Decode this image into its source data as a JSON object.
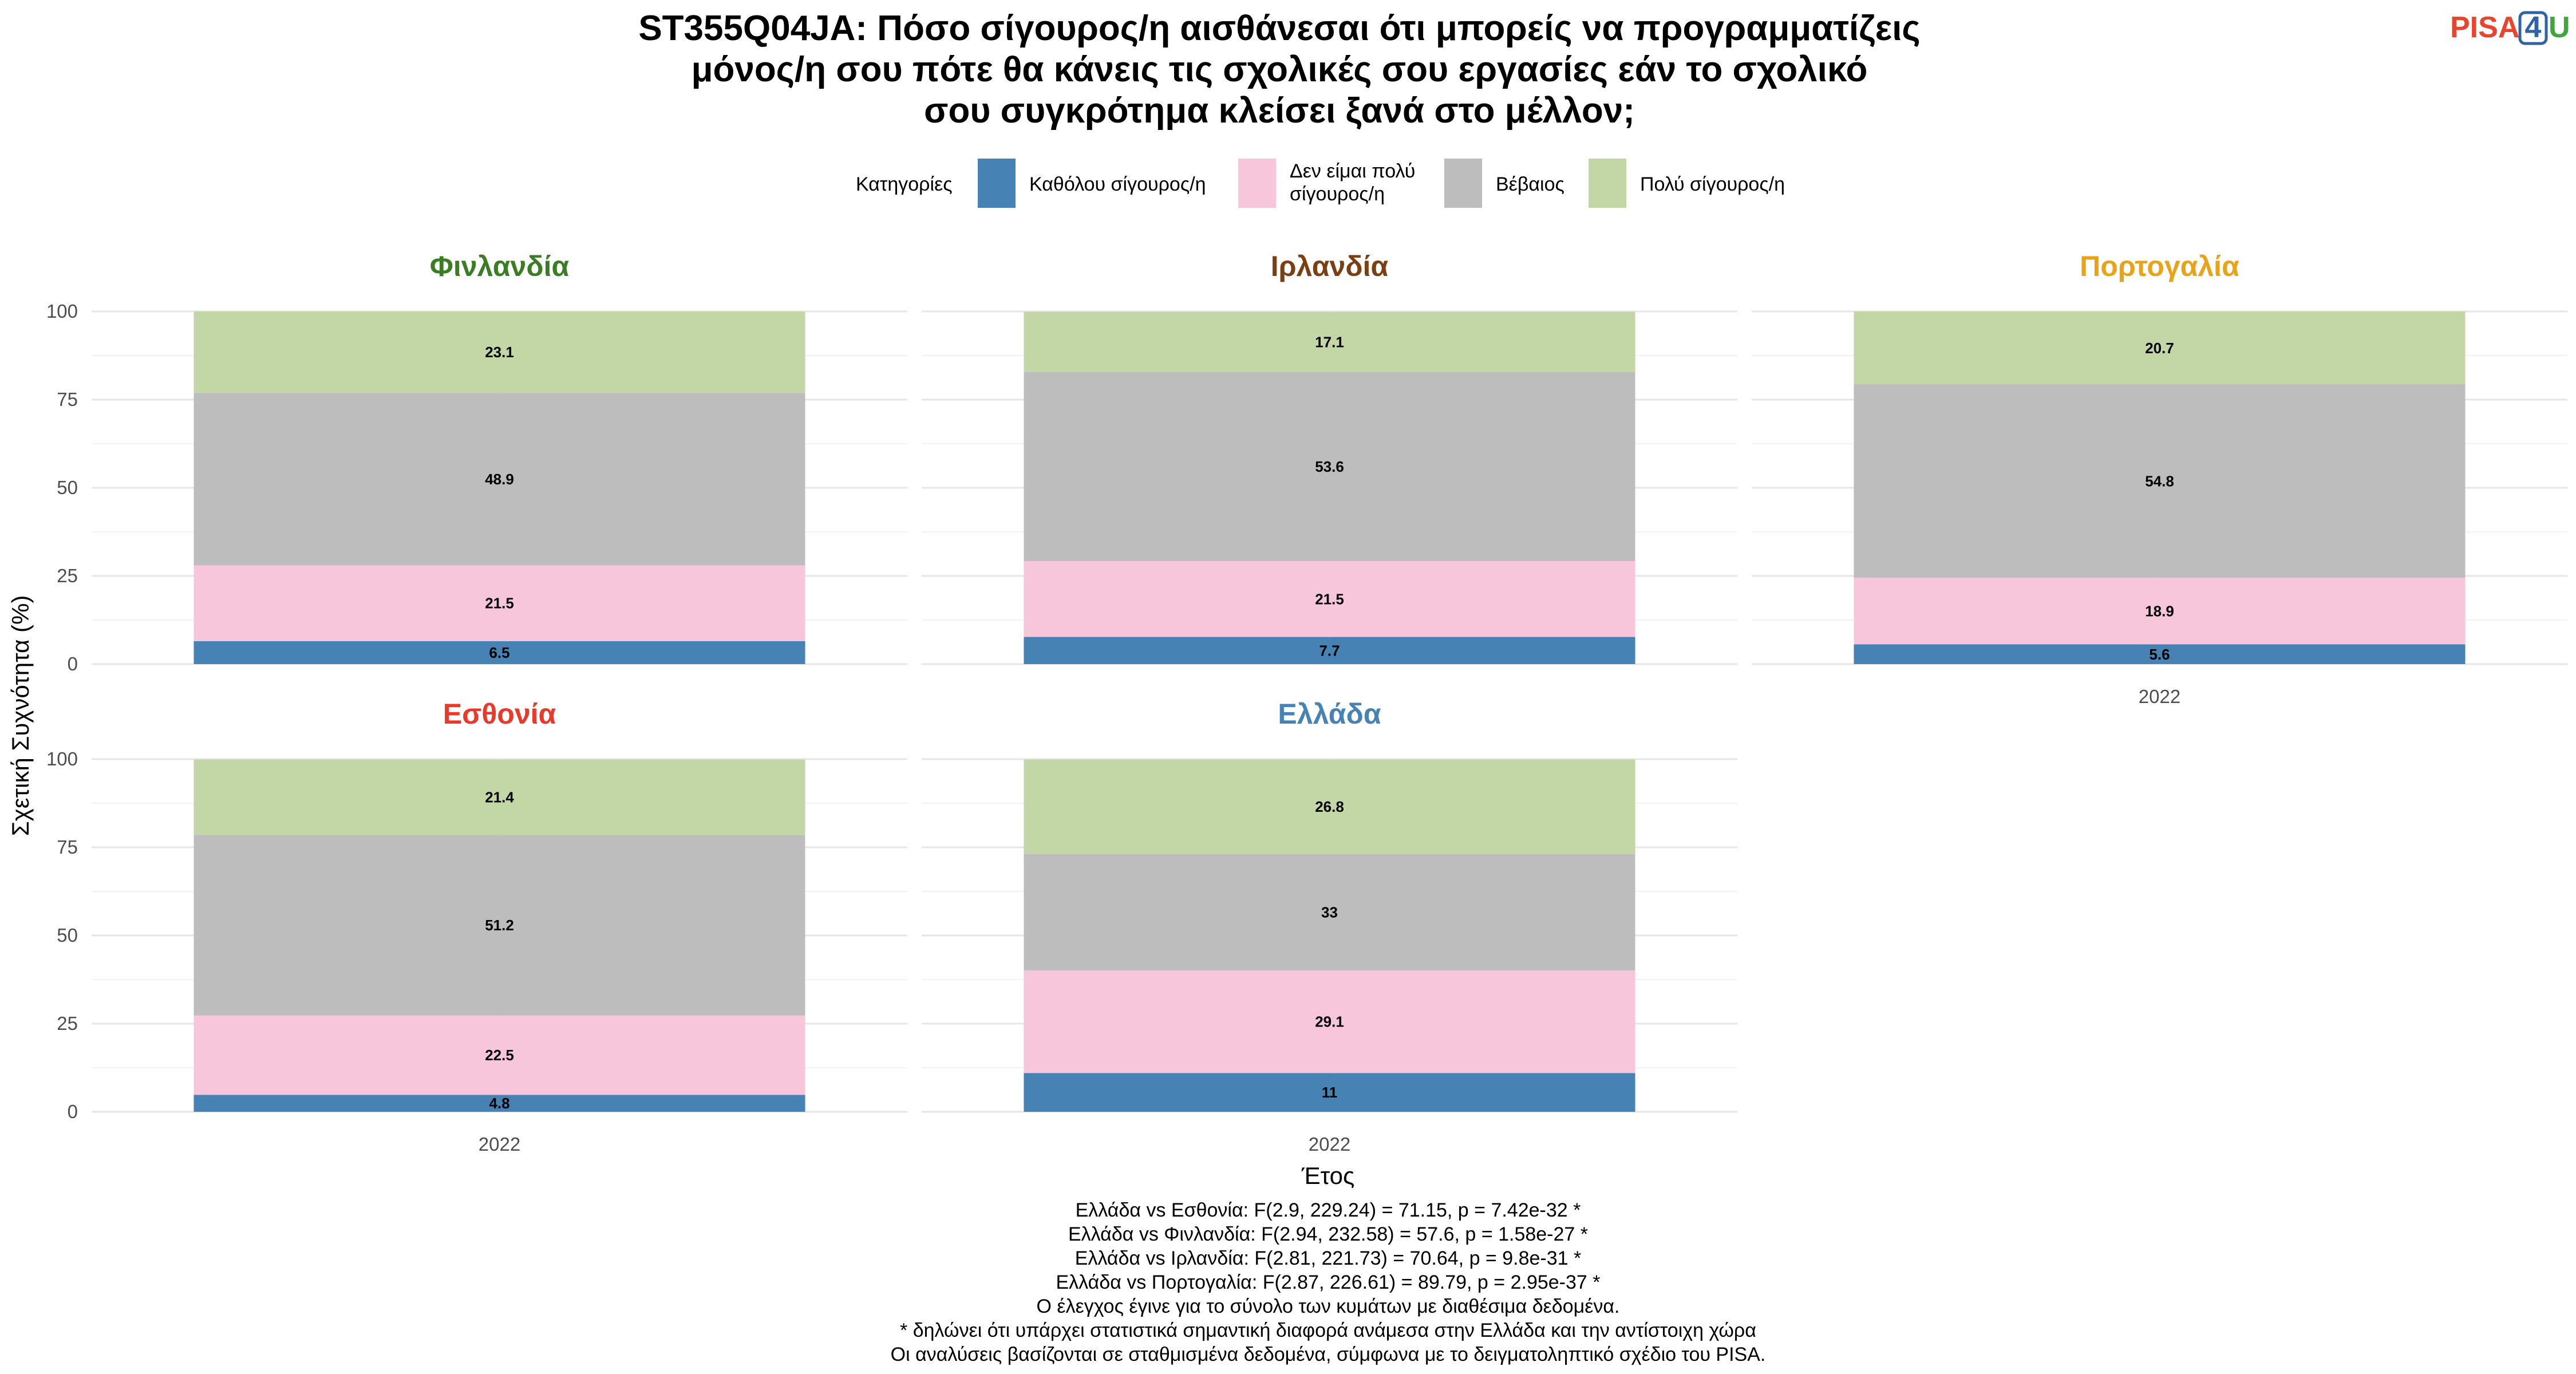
{
  "title_lines": [
    "ST355Q04JA: Πόσο σίγουρος/η αισθάνεσαι ότι μπορείς να προγραμματίζεις",
    "μόνος/η σου πότε θα κάνεις τις σχολικές σου εργασίες εάν το σχολικό",
    "σου συγκρότημα κλείσει ξανά στο μέλλον;"
  ],
  "logo": {
    "part1": "PISA",
    "part2": "4",
    "part3": "U",
    "color1": "#E8442E",
    "color2": "#2F63A8",
    "color3": "#3DA63C"
  },
  "legend": {
    "title": "Κατηγορίες",
    "items": [
      {
        "lines": [
          "Καθόλου σίγουρος/η"
        ],
        "color": "#4682B4"
      },
      {
        "lines": [
          "Δεν είμαι πολύ",
          "σίγουρος/η"
        ],
        "color": "#F7C6DB"
      },
      {
        "lines": [
          "Βέβαιος"
        ],
        "color": "#BDBDBD"
      },
      {
        "lines": [
          "Πολύ σίγουρος/η"
        ],
        "color": "#C2D6A6"
      }
    ]
  },
  "chart_data": {
    "type": "bar",
    "stacked": true,
    "facets_by": "country",
    "x_label": "Έτος",
    "y_label": "Σχετική Συχνότητα (%)",
    "ylim": [
      0,
      100
    ],
    "y_ticks": [
      0,
      25,
      50,
      75,
      100
    ],
    "categories": [
      "2022"
    ],
    "series_names": [
      "Καθόλου σίγουρος/η",
      "Δεν είμαι πολύ σίγουρος/η",
      "Βέβαιος",
      "Πολύ σίγουρος/η"
    ],
    "panels": [
      {
        "country": "Φινλανδία",
        "title_color": "#3A7D23",
        "year": "2022",
        "values": [
          6.5,
          21.5,
          48.9,
          23.1
        ],
        "labels": [
          "6.5",
          "21.5",
          "48.9",
          "23.1"
        ],
        "show_x_tick": false
      },
      {
        "country": "Ιρλανδία",
        "title_color": "#7B3F12",
        "year": "2022",
        "values": [
          7.7,
          21.5,
          53.6,
          17.1
        ],
        "labels": [
          "7.7",
          "21.5",
          "53.6",
          "17.1"
        ],
        "show_x_tick": false
      },
      {
        "country": "Πορτογαλία",
        "title_color": "#E8A317",
        "year": "2022",
        "values": [
          5.6,
          18.9,
          54.8,
          20.7
        ],
        "labels": [
          "5.6",
          "18.9",
          "54.8",
          "20.7"
        ],
        "show_x_tick": true
      },
      {
        "country": "Εσθονία",
        "title_color": "#E8392B",
        "year": "2022",
        "values": [
          4.8,
          22.5,
          51.2,
          21.4
        ],
        "labels": [
          "4.8",
          "22.5",
          "51.2",
          "21.4"
        ],
        "show_x_tick": true
      },
      {
        "country": "Ελλάδα",
        "title_color": "#4682B4",
        "year": "2022",
        "values": [
          11,
          29.1,
          33,
          26.8
        ],
        "labels": [
          "11",
          "29.1",
          "33",
          "26.8"
        ],
        "show_x_tick": true
      }
    ]
  },
  "notes": [
    "Ελλάδα vs Εσθονία: F(2.9, 229.24) = 71.15, p = 7.42e-32 *",
    "Ελλάδα vs Φινλανδία: F(2.94, 232.58) = 57.6, p = 1.58e-27 *",
    "Ελλάδα vs Ιρλανδία: F(2.81, 221.73) = 70.64, p = 9.8e-31 *",
    "Ελλάδα vs Πορτογαλία: F(2.87, 226.61) = 89.79, p = 2.95e-37 *",
    "Ο έλεγχος έγινε για το σύνολο των κυμάτων με διαθέσιμα δεδομένα.",
    "* δηλώνει ότι υπάρχει στατιστικά σημαντική διαφορά ανάμεσα στην Ελλάδα και την αντίστοιχη χώρα",
    "Οι αναλύσεις βασίζονται σε σταθμισμένα δεδομένα, σύμφωνα με το δειγματοληπτικό σχέδιο του PISA."
  ]
}
